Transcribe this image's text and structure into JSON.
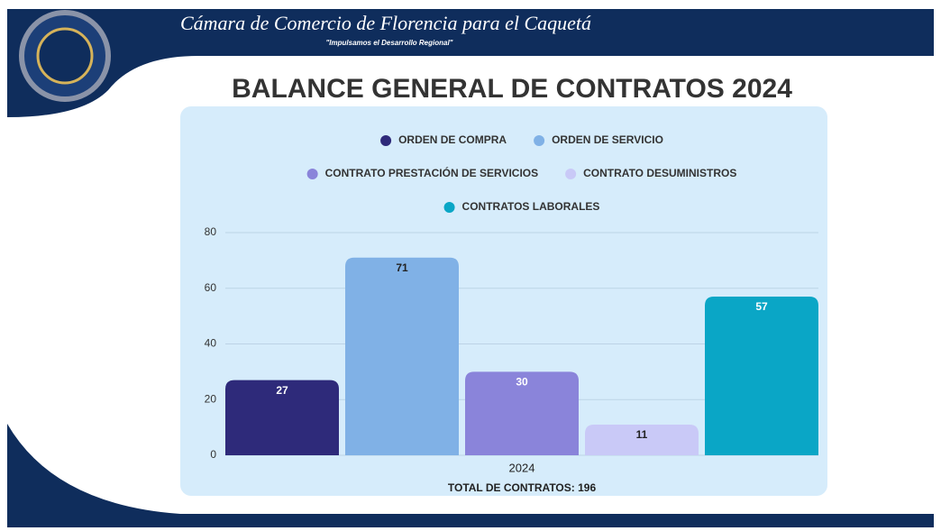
{
  "header": {
    "title": "Cámara de Comercio de Florencia para el Caquetá",
    "slogan": "\"Impulsamos el Desarrollo Regional\""
  },
  "chart_data": {
    "type": "bar",
    "title": "BALANCE GENERAL DE CONTRATOS 2024",
    "categories": [
      "2024"
    ],
    "series": [
      {
        "name": "ORDEN DE COMPRA",
        "color": "#2e2a7a",
        "values": [
          27
        ]
      },
      {
        "name": "ORDEN DE SERVICIO",
        "color": "#80b1e6",
        "values": [
          71
        ]
      },
      {
        "name": "CONTRATO PRESTACIÓN DE SERVICIOS",
        "color": "#8a84da",
        "values": [
          30
        ]
      },
      {
        "name": "CONTRATO DESUMINISTROS",
        "color": "#c9c9f7",
        "values": [
          11
        ]
      },
      {
        "name": "CONTRATOS LABORALES",
        "color": "#0aa6c6",
        "values": [
          57
        ]
      }
    ],
    "annotation": "TOTAL DE CONTRATOS: 196",
    "ylim": [
      0,
      80
    ],
    "yticks": [
      0,
      20,
      40,
      60,
      80
    ],
    "grid": true,
    "legend": "top"
  }
}
